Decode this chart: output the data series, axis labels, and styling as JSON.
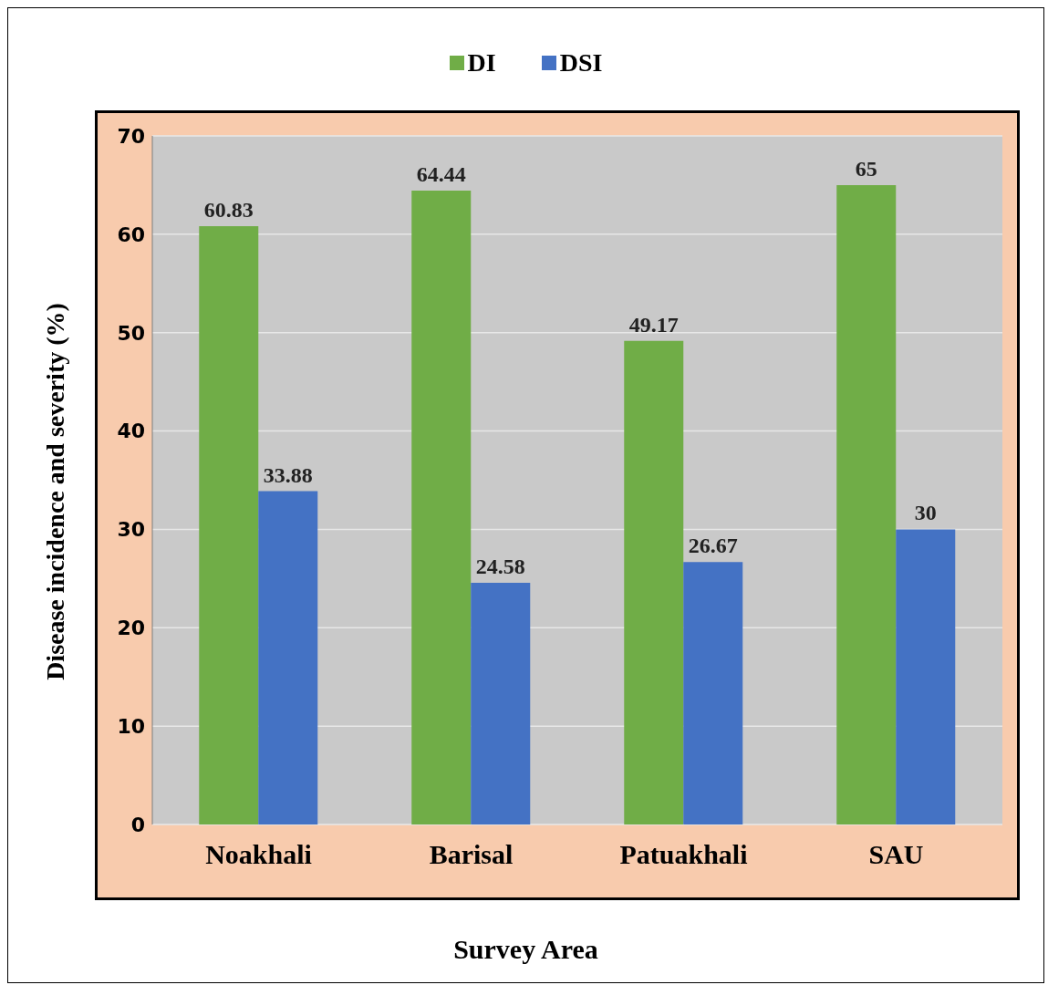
{
  "chart_data": {
    "type": "bar",
    "xlabel": "Survey Area",
    "ylabel": "Disease incidence and severity (%)",
    "categories": [
      "Noakhali",
      "Barisal",
      "Patuakhali",
      "SAU"
    ],
    "series": [
      {
        "name": "DI",
        "color": "#70ad47",
        "values": [
          60.83,
          64.44,
          49.17,
          65
        ]
      },
      {
        "name": "DSI",
        "color": "#4472c4",
        "values": [
          33.88,
          24.58,
          26.67,
          30
        ]
      }
    ],
    "ylim": [
      0,
      70
    ],
    "yticks": [
      0,
      10,
      20,
      30,
      40,
      50,
      60,
      70
    ],
    "grid": "y",
    "legend": "top",
    "data_labels": true
  }
}
